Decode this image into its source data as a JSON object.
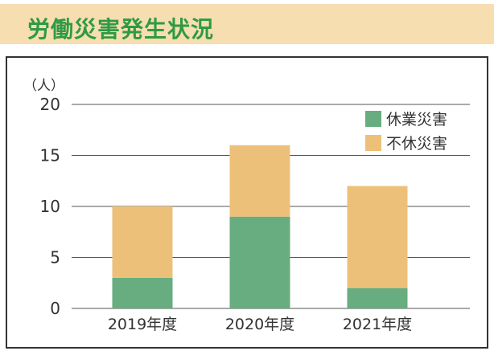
{
  "header": {
    "title": "労働災害発生状況"
  },
  "colors": {
    "title_band": "#f6deb0",
    "title_text": "#2f9a45",
    "series_lost_time": "#67ad80",
    "series_no_lost_time": "#edc07a",
    "gridline": "#555555"
  },
  "chart_data": {
    "type": "bar",
    "stacked": true,
    "title": "",
    "unit_label": "（人）",
    "categories": [
      "2019年度",
      "2020年度",
      "2021年度"
    ],
    "series": [
      {
        "name": "休業災害",
        "values": [
          3,
          9,
          2
        ],
        "color": "#67ad80"
      },
      {
        "name": "不休災害",
        "values": [
          7,
          7,
          10
        ],
        "color": "#edc07a"
      }
    ],
    "ylim": [
      0,
      20
    ],
    "yticks": [
      0,
      5,
      10,
      15,
      20
    ],
    "grid": true,
    "legend_position": "top-right"
  }
}
